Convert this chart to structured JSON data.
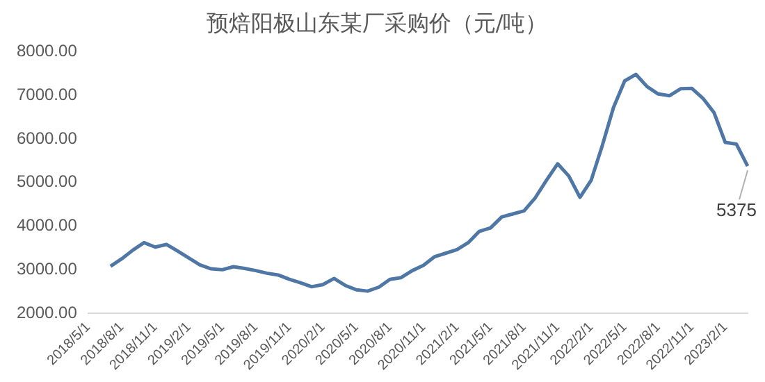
{
  "chart_data": {
    "type": "line",
    "title": "预焙阳极山东某厂采购价（元/吨）",
    "categories": [
      "2018/5/1",
      null,
      null,
      "2018/8/1",
      null,
      null,
      "2018/11/1",
      null,
      null,
      "2019/2/1",
      null,
      null,
      "2019/5/1",
      null,
      null,
      "2019/8/1",
      null,
      null,
      "2019/11/1",
      null,
      null,
      "2020/2/1",
      null,
      null,
      "2020/5/1",
      null,
      null,
      "2020/8/1",
      null,
      null,
      "2020/11/1",
      null,
      null,
      "2021/2/1",
      null,
      null,
      "2021/5/1",
      null,
      null,
      "2021/8/1",
      null,
      null,
      "2021/11/1",
      null,
      null,
      "2022/2/1",
      null,
      null,
      "2022/5/1",
      null,
      null,
      "2022/8/1",
      null,
      null,
      "2022/11/1",
      null,
      null,
      "2023/2/1",
      null,
      null
    ],
    "series": [
      {
        "color": "#4f77a6",
        "values": [
          null,
          null,
          3080,
          3250,
          3450,
          3620,
          3520,
          3580,
          3430,
          3270,
          3110,
          3020,
          3000,
          3070,
          3030,
          2980,
          2920,
          2880,
          2780,
          2700,
          2610,
          2660,
          2800,
          2640,
          2540,
          2510,
          2600,
          2780,
          2820,
          2980,
          3100,
          3300,
          3380,
          3460,
          3620,
          3880,
          3960,
          4210,
          4280,
          4350,
          4650,
          5050,
          5430,
          5150,
          4660,
          5050,
          5850,
          6720,
          7330,
          7480,
          7200,
          7030,
          6990,
          7150,
          7160,
          6930,
          6600,
          5920,
          5880,
          5375
        ],
        "value_labels": [
          null,
          null,
          null,
          null,
          null,
          null,
          null,
          null,
          null,
          null,
          null,
          null,
          null,
          null,
          null,
          null,
          null,
          null,
          null,
          null,
          null,
          null,
          null,
          null,
          null,
          null,
          null,
          null,
          null,
          null,
          null,
          null,
          null,
          null,
          null,
          null,
          null,
          null,
          null,
          null,
          null,
          null,
          null,
          null,
          null,
          null,
          null,
          null,
          null,
          null,
          null,
          null,
          null,
          null,
          null,
          null,
          null,
          null,
          null,
          "5375"
        ]
      }
    ],
    "ylim": [
      2000,
      8000
    ],
    "yticks": [
      {
        "value": 2000,
        "label": "2000.00"
      },
      {
        "value": 3000,
        "label": "3000.00"
      },
      {
        "value": 4000,
        "label": "4000.00"
      },
      {
        "value": 5000,
        "label": "5000.00"
      },
      {
        "value": 6000,
        "label": "6000.00"
      },
      {
        "value": 7000,
        "label": "7000.00"
      },
      {
        "value": 8000,
        "label": "8000.00"
      }
    ],
    "legend": false,
    "marker": "none",
    "line_style": "solid"
  }
}
